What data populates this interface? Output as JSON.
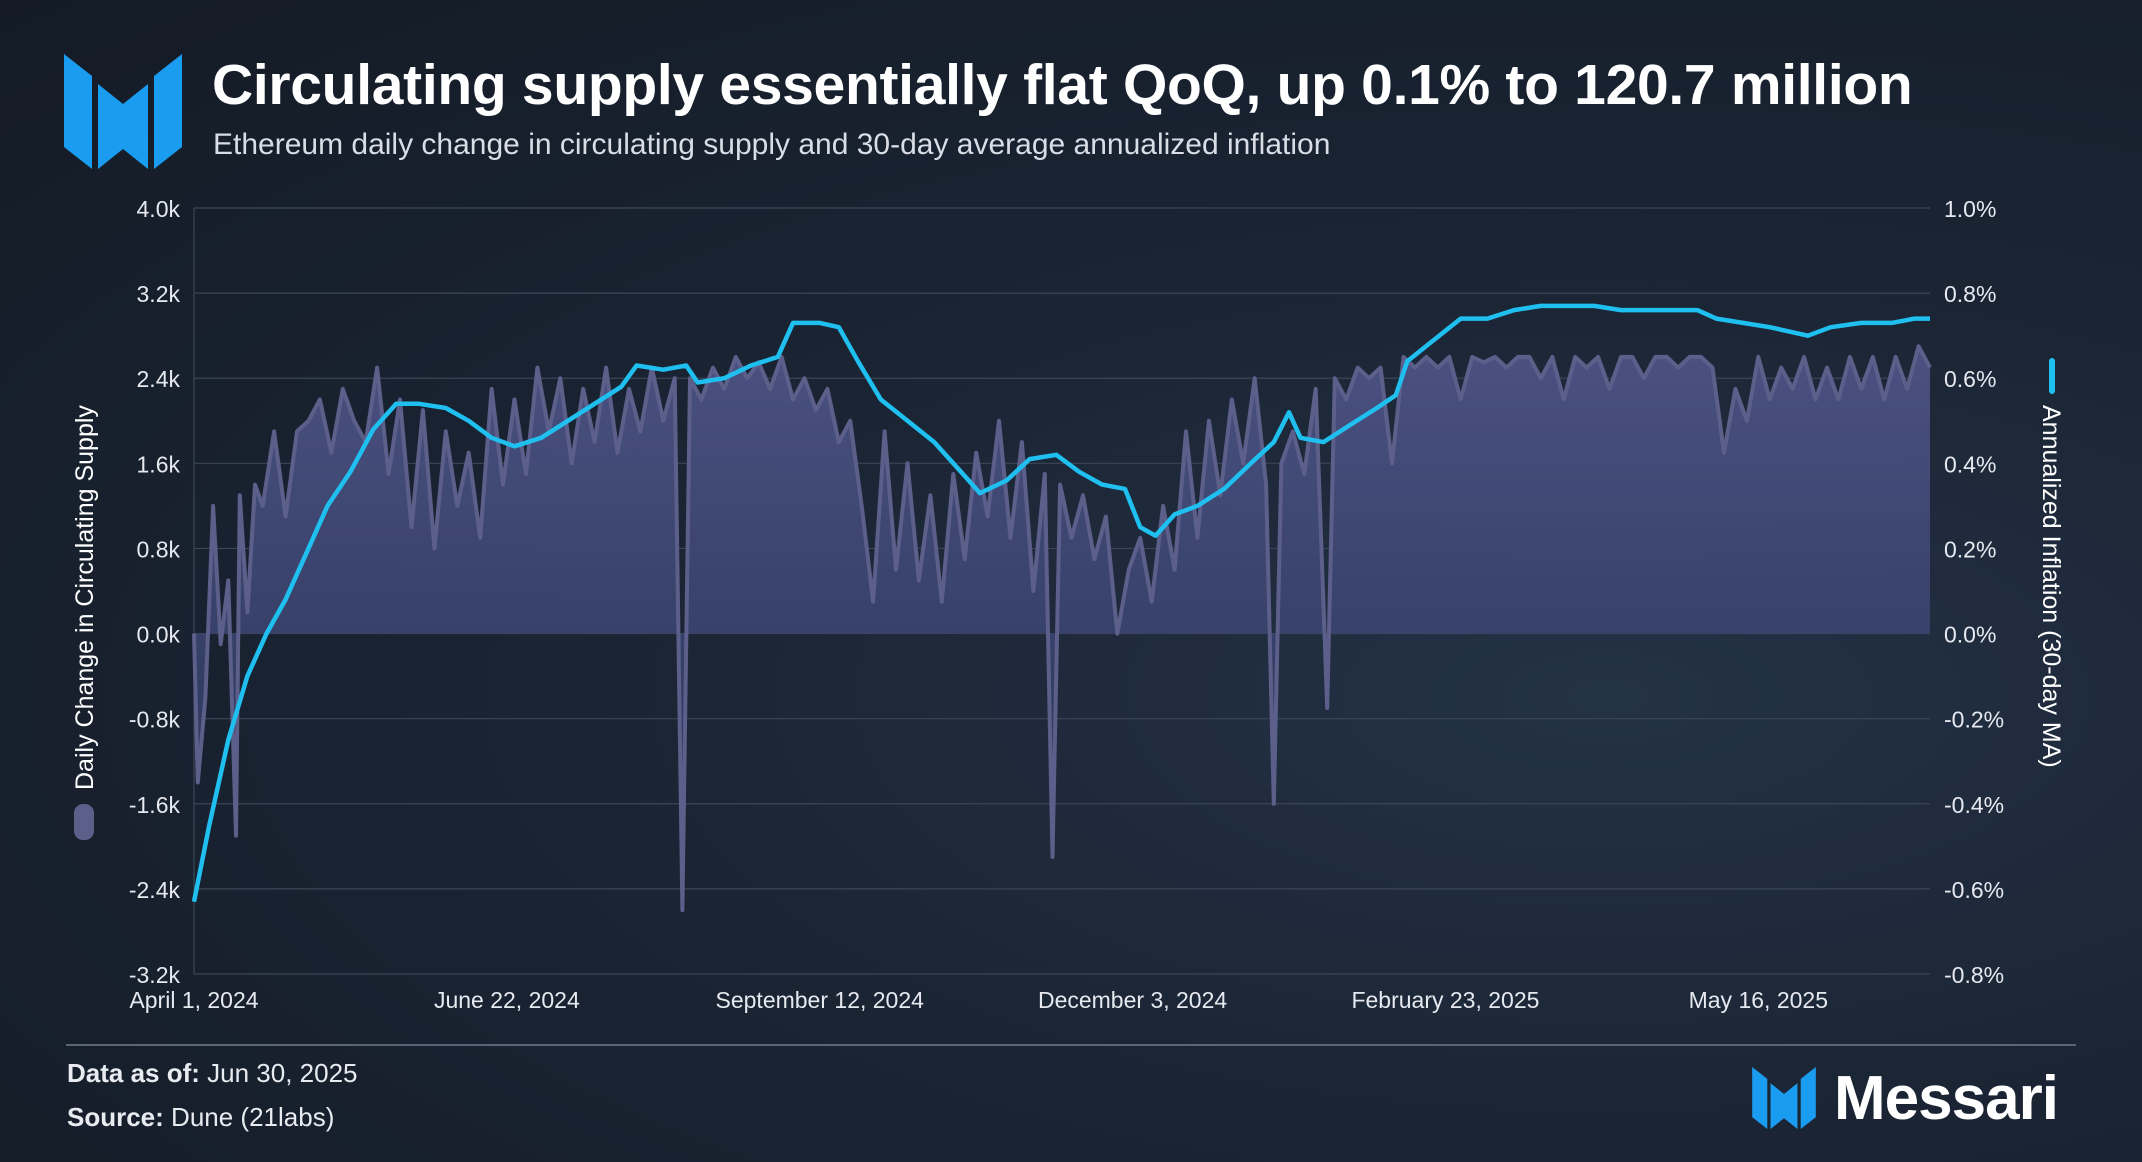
{
  "header": {
    "title": "Circulating supply essentially flat QoQ, up 0.1% to 120.7 million",
    "subtitle": "Ethereum daily change in circulating supply and 30-day average annualized inflation"
  },
  "footer": {
    "data_as_of_label": "Data as of:",
    "data_as_of_value": "Jun 30, 2025",
    "source_label": "Source:",
    "source_value": "Dune (21labs)",
    "brand": "Messari"
  },
  "colors": {
    "area_line": "#5c5f8a",
    "area_fill_top": "#4a5080",
    "area_fill_bottom": "#1e2a45",
    "inflation_line": "#1fc0f0",
    "grid": "#3a4658",
    "brand_blue": "#1a9cf0"
  },
  "icons": [
    "messari-logo-icon"
  ],
  "chart_data": {
    "type": "area+line",
    "x_start": "2024-04-01",
    "x_end": "2025-06-30",
    "x_tick_labels": [
      "April 1, 2024",
      "June 22, 2024",
      "September 12, 2024",
      "December 3, 2024",
      "February 23, 2025",
      "May 16, 2025"
    ],
    "x_tick_dates": [
      "2024-04-01",
      "2024-06-22",
      "2024-09-12",
      "2024-12-03",
      "2025-02-23",
      "2025-05-16"
    ],
    "y_left": {
      "label": "Daily Change in Circulating Supply",
      "range": [
        -3200,
        4000
      ],
      "tick_labels": [
        "4.0k",
        "3.2k",
        "2.4k",
        "1.6k",
        "0.8k",
        "0.0k",
        "-0.8k",
        "-1.6k",
        "-2.4k",
        "-3.2k"
      ],
      "tick_values": [
        4000,
        3200,
        2400,
        1600,
        800,
        0,
        -800,
        -1600,
        -2400,
        -3200
      ]
    },
    "y_right": {
      "label": "Annualized Inflation (30-day MA)",
      "range": [
        -0.8,
        1.0
      ],
      "tick_labels": [
        "1.0%",
        "0.8%",
        "0.6%",
        "0.4%",
        "0.2%",
        "0.0%",
        "-0.2%",
        "-0.4%",
        "-0.6%",
        "-0.8%"
      ],
      "tick_values": [
        1.0,
        0.8,
        0.6,
        0.4,
        0.2,
        0.0,
        -0.2,
        -0.4,
        -0.6,
        -0.8
      ]
    },
    "legend": "vertical axis titles",
    "series": [
      {
        "name": "Daily Change in Circulating Supply",
        "axis": "left",
        "type": "area",
        "points": [
          [
            "2024-04-01",
            0
          ],
          [
            "2024-04-02",
            -1400
          ],
          [
            "2024-04-04",
            -600
          ],
          [
            "2024-04-06",
            1200
          ],
          [
            "2024-04-08",
            -100
          ],
          [
            "2024-04-10",
            500
          ],
          [
            "2024-04-12",
            -1900
          ],
          [
            "2024-04-13",
            1300
          ],
          [
            "2024-04-15",
            200
          ],
          [
            "2024-04-17",
            1400
          ],
          [
            "2024-04-19",
            1200
          ],
          [
            "2024-04-22",
            1900
          ],
          [
            "2024-04-25",
            1100
          ],
          [
            "2024-04-28",
            1900
          ],
          [
            "2024-05-01",
            2000
          ],
          [
            "2024-05-04",
            2200
          ],
          [
            "2024-05-07",
            1700
          ],
          [
            "2024-05-10",
            2300
          ],
          [
            "2024-05-13",
            2000
          ],
          [
            "2024-05-16",
            1800
          ],
          [
            "2024-05-19",
            2500
          ],
          [
            "2024-05-22",
            1500
          ],
          [
            "2024-05-25",
            2200
          ],
          [
            "2024-05-28",
            1000
          ],
          [
            "2024-05-31",
            2100
          ],
          [
            "2024-06-03",
            800
          ],
          [
            "2024-06-06",
            1900
          ],
          [
            "2024-06-09",
            1200
          ],
          [
            "2024-06-12",
            1700
          ],
          [
            "2024-06-15",
            900
          ],
          [
            "2024-06-18",
            2300
          ],
          [
            "2024-06-21",
            1400
          ],
          [
            "2024-06-24",
            2200
          ],
          [
            "2024-06-27",
            1500
          ],
          [
            "2024-06-30",
            2500
          ],
          [
            "2024-07-03",
            1900
          ],
          [
            "2024-07-06",
            2400
          ],
          [
            "2024-07-09",
            1600
          ],
          [
            "2024-07-12",
            2300
          ],
          [
            "2024-07-15",
            1800
          ],
          [
            "2024-07-18",
            2500
          ],
          [
            "2024-07-21",
            1700
          ],
          [
            "2024-07-24",
            2300
          ],
          [
            "2024-07-27",
            1900
          ],
          [
            "2024-07-30",
            2500
          ],
          [
            "2024-08-02",
            2000
          ],
          [
            "2024-08-05",
            2400
          ],
          [
            "2024-08-07",
            -2600
          ],
          [
            "2024-08-09",
            2400
          ],
          [
            "2024-08-12",
            2200
          ],
          [
            "2024-08-15",
            2500
          ],
          [
            "2024-08-18",
            2300
          ],
          [
            "2024-08-21",
            2600
          ],
          [
            "2024-08-24",
            2400
          ],
          [
            "2024-08-27",
            2550
          ],
          [
            "2024-08-30",
            2300
          ],
          [
            "2024-09-02",
            2600
          ],
          [
            "2024-09-05",
            2200
          ],
          [
            "2024-09-08",
            2400
          ],
          [
            "2024-09-11",
            2100
          ],
          [
            "2024-09-14",
            2300
          ],
          [
            "2024-09-17",
            1800
          ],
          [
            "2024-09-20",
            2000
          ],
          [
            "2024-09-23",
            1200
          ],
          [
            "2024-09-26",
            300
          ],
          [
            "2024-09-29",
            1900
          ],
          [
            "2024-10-02",
            600
          ],
          [
            "2024-10-05",
            1600
          ],
          [
            "2024-10-08",
            500
          ],
          [
            "2024-10-11",
            1300
          ],
          [
            "2024-10-14",
            300
          ],
          [
            "2024-10-17",
            1500
          ],
          [
            "2024-10-20",
            700
          ],
          [
            "2024-10-23",
            1700
          ],
          [
            "2024-10-26",
            1100
          ],
          [
            "2024-10-29",
            2000
          ],
          [
            "2024-11-01",
            900
          ],
          [
            "2024-11-04",
            1800
          ],
          [
            "2024-11-07",
            400
          ],
          [
            "2024-11-10",
            1500
          ],
          [
            "2024-11-12",
            -2100
          ],
          [
            "2024-11-14",
            1400
          ],
          [
            "2024-11-17",
            900
          ],
          [
            "2024-11-20",
            1300
          ],
          [
            "2024-11-23",
            700
          ],
          [
            "2024-11-26",
            1100
          ],
          [
            "2024-11-29",
            0
          ],
          [
            "2024-12-02",
            600
          ],
          [
            "2024-12-05",
            900
          ],
          [
            "2024-12-08",
            300
          ],
          [
            "2024-12-11",
            1200
          ],
          [
            "2024-12-14",
            600
          ],
          [
            "2024-12-17",
            1900
          ],
          [
            "2024-12-20",
            900
          ],
          [
            "2024-12-23",
            2000
          ],
          [
            "2024-12-26",
            1300
          ],
          [
            "2024-12-29",
            2200
          ],
          [
            "2025-01-01",
            1600
          ],
          [
            "2025-01-04",
            2400
          ],
          [
            "2025-01-07",
            1400
          ],
          [
            "2025-01-09",
            -1600
          ],
          [
            "2025-01-11",
            1600
          ],
          [
            "2025-01-14",
            1900
          ],
          [
            "2025-01-17",
            1500
          ],
          [
            "2025-01-20",
            2300
          ],
          [
            "2025-01-23",
            -700
          ],
          [
            "2025-01-25",
            2400
          ],
          [
            "2025-01-28",
            2200
          ],
          [
            "2025-01-31",
            2500
          ],
          [
            "2025-02-03",
            2400
          ],
          [
            "2025-02-06",
            2500
          ],
          [
            "2025-02-09",
            1600
          ],
          [
            "2025-02-12",
            2600
          ],
          [
            "2025-02-15",
            2500
          ],
          [
            "2025-02-18",
            2600
          ],
          [
            "2025-02-21",
            2500
          ],
          [
            "2025-02-24",
            2600
          ],
          [
            "2025-02-27",
            2200
          ],
          [
            "2025-03-02",
            2600
          ],
          [
            "2025-03-05",
            2550
          ],
          [
            "2025-03-08",
            2600
          ],
          [
            "2025-03-11",
            2500
          ],
          [
            "2025-03-14",
            2600
          ],
          [
            "2025-03-17",
            2600
          ],
          [
            "2025-03-20",
            2400
          ],
          [
            "2025-03-23",
            2600
          ],
          [
            "2025-03-26",
            2200
          ],
          [
            "2025-03-29",
            2600
          ],
          [
            "2025-04-01",
            2500
          ],
          [
            "2025-04-04",
            2600
          ],
          [
            "2025-04-07",
            2300
          ],
          [
            "2025-04-10",
            2600
          ],
          [
            "2025-04-13",
            2600
          ],
          [
            "2025-04-16",
            2400
          ],
          [
            "2025-04-19",
            2600
          ],
          [
            "2025-04-22",
            2600
          ],
          [
            "2025-04-25",
            2500
          ],
          [
            "2025-04-28",
            2600
          ],
          [
            "2025-05-01",
            2600
          ],
          [
            "2025-05-04",
            2500
          ],
          [
            "2025-05-07",
            1700
          ],
          [
            "2025-05-10",
            2300
          ],
          [
            "2025-05-13",
            2000
          ],
          [
            "2025-05-16",
            2600
          ],
          [
            "2025-05-19",
            2200
          ],
          [
            "2025-05-22",
            2500
          ],
          [
            "2025-05-25",
            2300
          ],
          [
            "2025-05-28",
            2600
          ],
          [
            "2025-05-31",
            2200
          ],
          [
            "2025-06-03",
            2500
          ],
          [
            "2025-06-06",
            2200
          ],
          [
            "2025-06-09",
            2600
          ],
          [
            "2025-06-12",
            2300
          ],
          [
            "2025-06-15",
            2600
          ],
          [
            "2025-06-18",
            2200
          ],
          [
            "2025-06-21",
            2600
          ],
          [
            "2025-06-24",
            2300
          ],
          [
            "2025-06-27",
            2700
          ],
          [
            "2025-06-30",
            2500
          ]
        ]
      },
      {
        "name": "Annualized Inflation (30-day MA)",
        "axis": "right",
        "type": "line",
        "points": [
          [
            "2024-04-01",
            -0.63
          ],
          [
            "2024-04-05",
            -0.45
          ],
          [
            "2024-04-10",
            -0.25
          ],
          [
            "2024-04-15",
            -0.1
          ],
          [
            "2024-04-20",
            0.0
          ],
          [
            "2024-04-25",
            0.08
          ],
          [
            "2024-05-01",
            0.2
          ],
          [
            "2024-05-06",
            0.3
          ],
          [
            "2024-05-12",
            0.38
          ],
          [
            "2024-05-18",
            0.48
          ],
          [
            "2024-05-24",
            0.54
          ],
          [
            "2024-05-30",
            0.54
          ],
          [
            "2024-06-06",
            0.53
          ],
          [
            "2024-06-12",
            0.5
          ],
          [
            "2024-06-18",
            0.46
          ],
          [
            "2024-06-24",
            0.44
          ],
          [
            "2024-07-01",
            0.46
          ],
          [
            "2024-07-08",
            0.5
          ],
          [
            "2024-07-15",
            0.54
          ],
          [
            "2024-07-22",
            0.58
          ],
          [
            "2024-07-26",
            0.63
          ],
          [
            "2024-08-02",
            0.62
          ],
          [
            "2024-08-08",
            0.63
          ],
          [
            "2024-08-11",
            0.59
          ],
          [
            "2024-08-18",
            0.6
          ],
          [
            "2024-08-25",
            0.63
          ],
          [
            "2024-09-01",
            0.65
          ],
          [
            "2024-09-05",
            0.73
          ],
          [
            "2024-09-12",
            0.73
          ],
          [
            "2024-09-17",
            0.72
          ],
          [
            "2024-09-22",
            0.64
          ],
          [
            "2024-09-28",
            0.55
          ],
          [
            "2024-10-05",
            0.5
          ],
          [
            "2024-10-12",
            0.45
          ],
          [
            "2024-10-19",
            0.38
          ],
          [
            "2024-10-24",
            0.33
          ],
          [
            "2024-10-31",
            0.36
          ],
          [
            "2024-11-06",
            0.41
          ],
          [
            "2024-11-13",
            0.42
          ],
          [
            "2024-11-19",
            0.38
          ],
          [
            "2024-11-25",
            0.35
          ],
          [
            "2024-12-01",
            0.34
          ],
          [
            "2024-12-05",
            0.25
          ],
          [
            "2024-12-09",
            0.23
          ],
          [
            "2024-12-14",
            0.28
          ],
          [
            "2024-12-20",
            0.3
          ],
          [
            "2024-12-27",
            0.34
          ],
          [
            "2025-01-03",
            0.4
          ],
          [
            "2025-01-09",
            0.45
          ],
          [
            "2025-01-13",
            0.52
          ],
          [
            "2025-01-16",
            0.46
          ],
          [
            "2025-01-22",
            0.45
          ],
          [
            "2025-01-29",
            0.49
          ],
          [
            "2025-02-05",
            0.53
          ],
          [
            "2025-02-10",
            0.56
          ],
          [
            "2025-02-13",
            0.64
          ],
          [
            "2025-02-20",
            0.69
          ],
          [
            "2025-02-27",
            0.74
          ],
          [
            "2025-03-06",
            0.74
          ],
          [
            "2025-03-13",
            0.76
          ],
          [
            "2025-03-20",
            0.77
          ],
          [
            "2025-03-27",
            0.77
          ],
          [
            "2025-04-03",
            0.77
          ],
          [
            "2025-04-10",
            0.76
          ],
          [
            "2025-04-17",
            0.76
          ],
          [
            "2025-04-24",
            0.76
          ],
          [
            "2025-04-30",
            0.76
          ],
          [
            "2025-05-05",
            0.74
          ],
          [
            "2025-05-12",
            0.73
          ],
          [
            "2025-05-19",
            0.72
          ],
          [
            "2025-05-24",
            0.71
          ],
          [
            "2025-05-29",
            0.7
          ],
          [
            "2025-06-04",
            0.72
          ],
          [
            "2025-06-12",
            0.73
          ],
          [
            "2025-06-20",
            0.73
          ],
          [
            "2025-06-26",
            0.74
          ],
          [
            "2025-06-30",
            0.74
          ]
        ]
      }
    ]
  }
}
